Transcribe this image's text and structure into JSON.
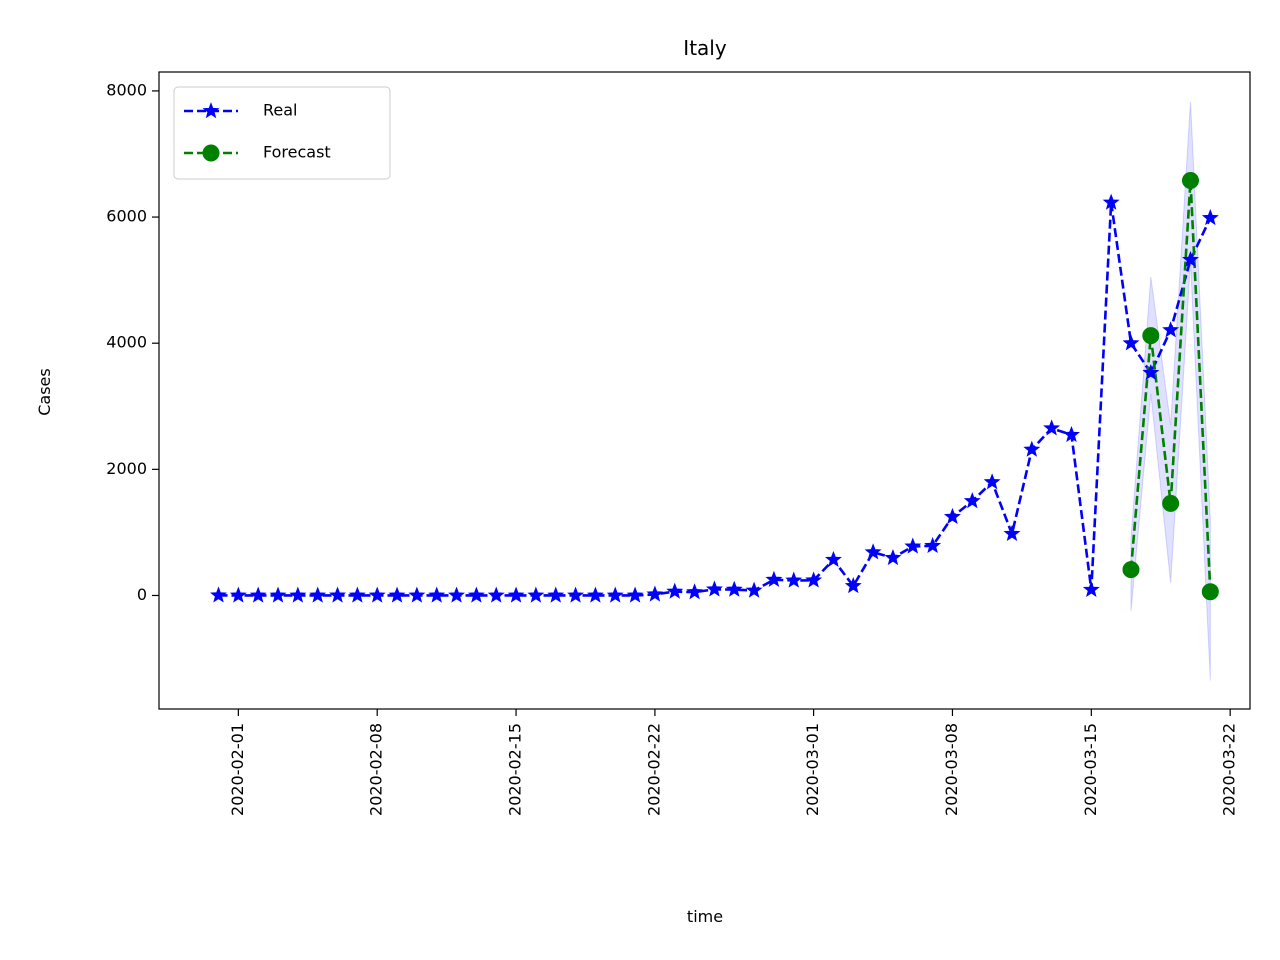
{
  "chart_data": {
    "type": "line",
    "title": "Italy",
    "xlabel": "time",
    "ylabel": "Cases",
    "xlim": [
      "2020-01-28",
      "2020-03-23"
    ],
    "ylim": [
      -1800,
      8300
    ],
    "x_ticks": [
      "2020-02-01",
      "2020-02-08",
      "2020-02-15",
      "2020-02-22",
      "2020-03-01",
      "2020-03-08",
      "2020-03-15",
      "2020-03-22"
    ],
    "y_ticks": [
      0,
      2000,
      4000,
      6000,
      8000
    ],
    "y_tick_labels": [
      "0",
      "2000",
      "4000",
      "6000",
      "8000"
    ],
    "grid": false,
    "legend": {
      "placement": "top-left",
      "entries": [
        "Real",
        "Forecast"
      ]
    },
    "series": [
      {
        "name": "Real",
        "color": "#0000ff",
        "marker": "star",
        "linestyle": "dashed",
        "x": [
          "2020-01-31",
          "2020-02-01",
          "2020-02-02",
          "2020-02-03",
          "2020-02-04",
          "2020-02-05",
          "2020-02-06",
          "2020-02-07",
          "2020-02-08",
          "2020-02-09",
          "2020-02-10",
          "2020-02-11",
          "2020-02-12",
          "2020-02-13",
          "2020-02-14",
          "2020-02-15",
          "2020-02-16",
          "2020-02-17",
          "2020-02-18",
          "2020-02-19",
          "2020-02-20",
          "2020-02-21",
          "2020-02-22",
          "2020-02-23",
          "2020-02-24",
          "2020-02-25",
          "2020-02-26",
          "2020-02-27",
          "2020-02-28",
          "2020-02-29",
          "2020-03-01",
          "2020-03-02",
          "2020-03-03",
          "2020-03-04",
          "2020-03-05",
          "2020-03-06",
          "2020-03-07",
          "2020-03-08",
          "2020-03-09",
          "2020-03-10",
          "2020-03-11",
          "2020-03-12",
          "2020-03-13",
          "2020-03-14",
          "2020-03-15",
          "2020-03-16",
          "2020-03-17",
          "2020-03-18",
          "2020-03-19",
          "2020-03-20",
          "2020-03-21"
        ],
        "y": [
          2,
          0,
          0,
          0,
          0,
          0,
          1,
          0,
          0,
          0,
          0,
          0,
          0,
          0,
          0,
          0,
          0,
          0,
          0,
          0,
          0,
          0,
          17,
          62,
          53,
          97,
          93,
          78,
          250,
          238,
          240,
          566,
          151,
          686,
          596,
          778,
          787,
          1247,
          1497,
          1797,
          977,
          2313,
          2651,
          2547,
          90,
          6230,
          4000,
          3530,
          4207,
          5322,
          5986
        ]
      },
      {
        "name": "Forecast",
        "color": "#008000",
        "marker": "circle",
        "linestyle": "dashed",
        "x": [
          "2020-03-17",
          "2020-03-18",
          "2020-03-19",
          "2020-03-20",
          "2020-03-21"
        ],
        "y": [
          410,
          4120,
          1460,
          6580,
          60
        ],
        "interval_lower": [
          -250,
          3200,
          200,
          5300,
          -1350
        ],
        "interval_upper": [
          900,
          5050,
          2700,
          7830,
          1200
        ],
        "interval_color": "#0000ff"
      }
    ]
  }
}
